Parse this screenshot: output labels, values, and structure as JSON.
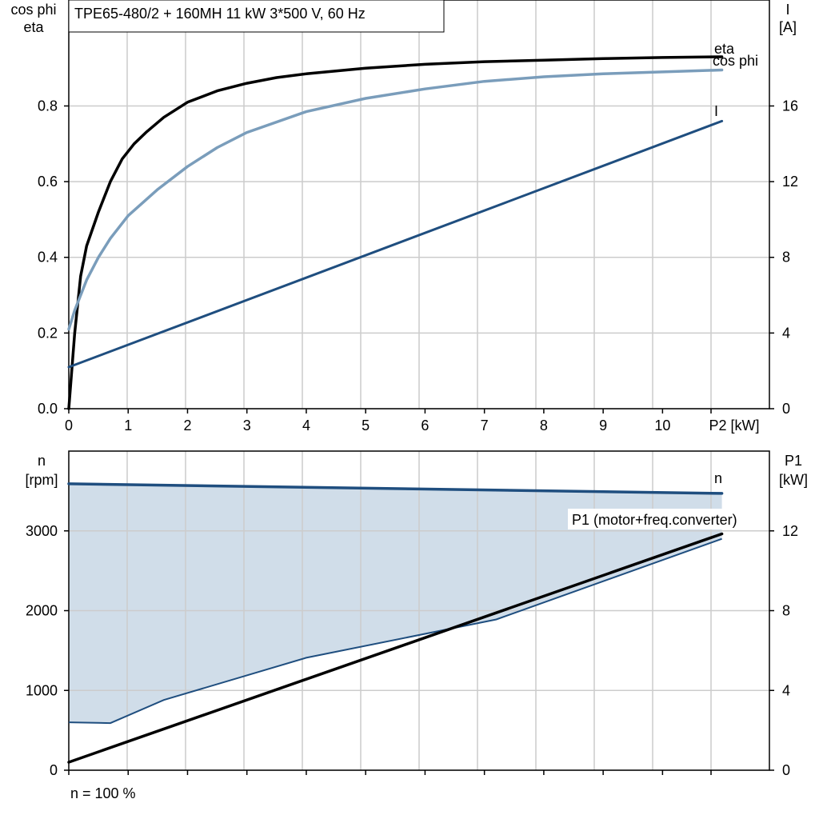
{
  "chart_data": [
    {
      "type": "line",
      "title": "TPE65-480/2 + 160MH   11 kW   3*500 V, 60 Hz",
      "xlabel": "P2 [kW]",
      "ylabel_left": [
        "cos phi",
        "eta"
      ],
      "ylabel_right": [
        "I",
        "[A]"
      ],
      "x_ticks": [
        "0",
        "1",
        "2",
        "3",
        "4",
        "5",
        "6",
        "7",
        "8",
        "9",
        "10"
      ],
      "y_left_ticks": [
        "0.0",
        "0.2",
        "0.4",
        "0.6",
        "0.8"
      ],
      "y_right_ticks": [
        "0",
        "4",
        "8",
        "12",
        "16"
      ],
      "xlim": [
        0,
        11.8
      ],
      "ylim_left": [
        0,
        1.08
      ],
      "ylim_right": [
        0,
        21.6
      ],
      "grid": true,
      "series": [
        {
          "name": "eta",
          "axis": "left",
          "color": "#000000",
          "x": [
            0,
            0.1,
            0.2,
            0.3,
            0.5,
            0.7,
            0.9,
            1.1,
            1.3,
            1.6,
            2,
            2.5,
            3,
            3.5,
            4,
            5,
            6,
            7,
            8,
            9,
            10,
            11
          ],
          "y": [
            0,
            0.2,
            0.35,
            0.43,
            0.52,
            0.6,
            0.66,
            0.7,
            0.73,
            0.77,
            0.81,
            0.84,
            0.86,
            0.875,
            0.885,
            0.9,
            0.91,
            0.917,
            0.921,
            0.925,
            0.928,
            0.93
          ]
        },
        {
          "name": "cos phi",
          "axis": "left",
          "color": "#7a9dbb",
          "x": [
            0,
            0.1,
            0.3,
            0.5,
            0.7,
            1,
            1.5,
            2,
            2.5,
            3,
            4,
            5,
            6,
            7,
            8,
            9,
            10,
            11
          ],
          "y": [
            0.21,
            0.26,
            0.34,
            0.4,
            0.45,
            0.51,
            0.58,
            0.64,
            0.69,
            0.73,
            0.785,
            0.82,
            0.845,
            0.865,
            0.877,
            0.885,
            0.89,
            0.895
          ]
        },
        {
          "name": "I",
          "axis": "right",
          "color": "#1f4e7f",
          "x": [
            0,
            11
          ],
          "y": [
            2.2,
            15.2
          ]
        }
      ]
    },
    {
      "type": "line",
      "xlabel": "",
      "ylabel_left": [
        "n",
        "[rpm]"
      ],
      "ylabel_right": [
        "P1",
        "[kW]"
      ],
      "y_left_ticks": [
        "0",
        "1000",
        "2000",
        "3000"
      ],
      "y_right_ticks": [
        "0",
        "4",
        "8",
        "12"
      ],
      "xlim": [
        0,
        11.8
      ],
      "ylim_left": [
        0,
        4000
      ],
      "ylim_right": [
        0,
        16
      ],
      "grid": true,
      "annotation": "n = 100 %",
      "shaded_region": {
        "color": "#d0dde9",
        "upper_x": [
          0,
          11
        ],
        "upper_y": [
          3590,
          3470
        ],
        "lower_x": [
          0,
          0.7,
          1.6,
          4,
          7.2,
          11
        ],
        "lower_y": [
          600,
          590,
          880,
          1410,
          1890,
          2900
        ]
      },
      "series": [
        {
          "name": "n",
          "axis": "left",
          "color": "#1f4e7f",
          "x": [
            0,
            11
          ],
          "y": [
            3590,
            3470
          ]
        },
        {
          "name": "P1 (motor+freq.converter)",
          "axis": "right",
          "color": "#000000",
          "x": [
            0,
            11
          ],
          "y": [
            0.4,
            11.85
          ]
        }
      ]
    }
  ]
}
